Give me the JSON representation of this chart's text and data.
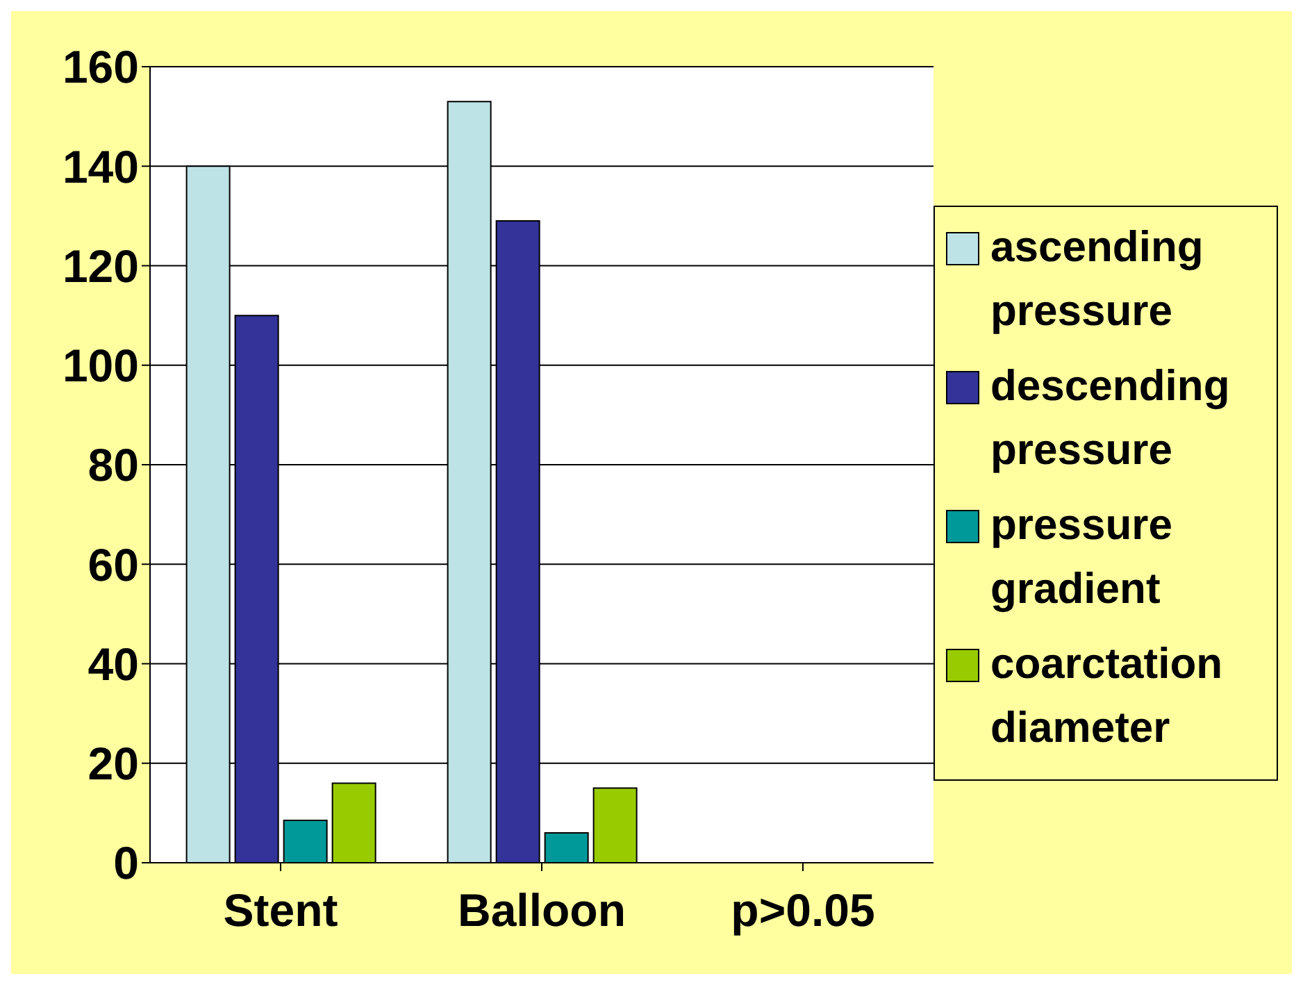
{
  "chart_data": {
    "type": "bar",
    "categories": [
      "Stent",
      "Balloon",
      "p>0.05"
    ],
    "series": [
      {
        "name": "ascending pressure",
        "color": "#bde3e6",
        "values": [
          140,
          153,
          null
        ]
      },
      {
        "name": "descending pressure",
        "color": "#333399",
        "values": [
          110,
          129,
          null
        ]
      },
      {
        "name": "pressure gradient",
        "color": "#009999",
        "values": [
          8.5,
          6,
          null
        ]
      },
      {
        "name": "coarctation diameter",
        "color": "#99cc00",
        "values": [
          16,
          15,
          null
        ]
      }
    ],
    "ylim": [
      0,
      160
    ],
    "yticks": [
      0,
      20,
      40,
      60,
      80,
      100,
      120,
      140,
      160
    ],
    "grid": "y",
    "legend": "right"
  }
}
